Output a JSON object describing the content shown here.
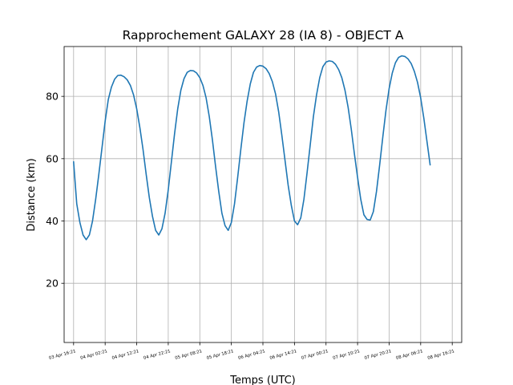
{
  "chart_data": {
    "type": "line",
    "title": "Rapprochement GALAXY 28 (IA 8) - OBJECT A",
    "xlabel": "Temps (UTC)",
    "ylabel": "Distance (km)",
    "x_tick_labels": [
      "03 Apr 16:21",
      "04 Apr 02:21",
      "04 Apr 12:21",
      "04 Apr 22:21",
      "05 Apr 08:21",
      "05 Apr 18:21",
      "06 Apr 04:21",
      "06 Apr 14:21",
      "07 Apr 00:21",
      "07 Apr 10:21",
      "07 Apr 20:21",
      "08 Apr 06:21",
      "08 Apr 16:21"
    ],
    "x_range_hours": [
      -3,
      123
    ],
    "y_ticks": [
      20,
      40,
      60,
      80
    ],
    "ylim": [
      1,
      96
    ],
    "grid": true,
    "legend": "none",
    "series": [
      {
        "color": "#1f77b4",
        "points": [
          [
            0,
            59
          ],
          [
            1,
            45.5
          ],
          [
            2,
            39.5
          ],
          [
            3,
            35.5
          ],
          [
            4,
            34
          ],
          [
            5,
            35.5
          ],
          [
            6,
            40
          ],
          [
            7,
            47
          ],
          [
            8,
            55
          ],
          [
            9,
            63.5
          ],
          [
            10,
            72
          ],
          [
            11,
            79
          ],
          [
            12,
            83
          ],
          [
            13,
            85.5
          ],
          [
            14,
            86.7
          ],
          [
            15,
            86.8
          ],
          [
            16,
            86.3
          ],
          [
            17,
            85.3
          ],
          [
            18,
            83.5
          ],
          [
            19,
            80.5
          ],
          [
            20,
            76
          ],
          [
            21,
            70
          ],
          [
            22,
            63
          ],
          [
            23,
            55
          ],
          [
            24,
            47.5
          ],
          [
            25,
            41.5
          ],
          [
            26,
            37
          ],
          [
            27,
            35.5
          ],
          [
            28,
            37.5
          ],
          [
            29,
            42.5
          ],
          [
            30,
            50
          ],
          [
            31,
            59
          ],
          [
            32,
            68
          ],
          [
            33,
            76
          ],
          [
            34,
            82
          ],
          [
            35,
            85.7
          ],
          [
            36,
            87.7
          ],
          [
            37,
            88.3
          ],
          [
            38,
            88.2
          ],
          [
            39,
            87.5
          ],
          [
            40,
            86
          ],
          [
            41,
            83.5
          ],
          [
            42,
            79.5
          ],
          [
            43,
            73.5
          ],
          [
            44,
            66
          ],
          [
            45,
            57.5
          ],
          [
            46,
            49.5
          ],
          [
            47,
            42.5
          ],
          [
            48,
            38.5
          ],
          [
            49,
            37
          ],
          [
            50,
            39.5
          ],
          [
            51,
            45.5
          ],
          [
            52,
            54
          ],
          [
            53,
            63
          ],
          [
            54,
            71.5
          ],
          [
            55,
            78.5
          ],
          [
            56,
            84
          ],
          [
            57,
            87.7
          ],
          [
            58,
            89.4
          ],
          [
            59,
            89.9
          ],
          [
            60,
            89.7
          ],
          [
            61,
            88.9
          ],
          [
            62,
            87.3
          ],
          [
            63,
            84.7
          ],
          [
            64,
            80.8
          ],
          [
            65,
            75
          ],
          [
            66,
            67.5
          ],
          [
            67,
            59.5
          ],
          [
            68,
            51.5
          ],
          [
            69,
            45
          ],
          [
            70,
            40
          ],
          [
            71,
            38.8
          ],
          [
            72,
            41
          ],
          [
            73,
            47
          ],
          [
            74,
            55.5
          ],
          [
            75,
            64.5
          ],
          [
            76,
            73.5
          ],
          [
            77,
            80.5
          ],
          [
            78,
            86
          ],
          [
            79,
            89.5
          ],
          [
            80,
            91
          ],
          [
            81,
            91.4
          ],
          [
            82,
            91.2
          ],
          [
            83,
            90.3
          ],
          [
            84,
            88.6
          ],
          [
            85,
            86
          ],
          [
            86,
            82
          ],
          [
            87,
            76.5
          ],
          [
            88,
            69.5
          ],
          [
            89,
            61.5
          ],
          [
            90,
            54
          ],
          [
            91,
            47
          ],
          [
            92,
            42
          ],
          [
            93,
            40.5
          ],
          [
            94,
            40.3
          ],
          [
            95,
            43
          ],
          [
            96,
            49.5
          ],
          [
            97,
            58
          ],
          [
            98,
            67
          ],
          [
            99,
            75.5
          ],
          [
            100,
            82.5
          ],
          [
            101,
            87.5
          ],
          [
            102,
            90.8
          ],
          [
            103,
            92.5
          ],
          [
            104,
            93
          ],
          [
            105,
            92.8
          ],
          [
            106,
            92
          ],
          [
            107,
            90.5
          ],
          [
            108,
            88
          ],
          [
            109,
            84.5
          ],
          [
            110,
            79.5
          ],
          [
            111,
            73
          ],
          [
            112,
            65.5
          ],
          [
            113,
            58
          ]
        ]
      }
    ]
  }
}
